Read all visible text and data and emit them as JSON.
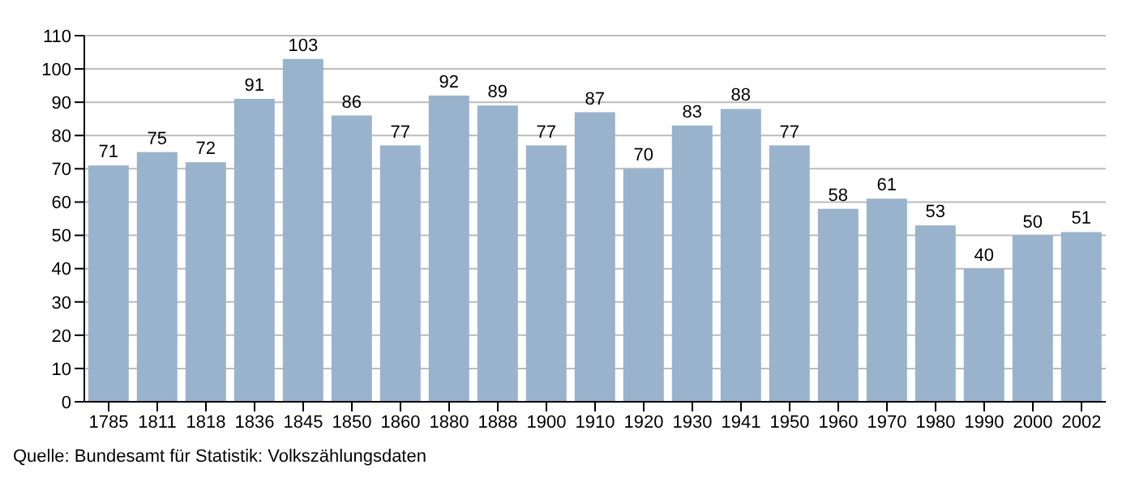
{
  "chart_data": {
    "type": "bar",
    "categories": [
      "1785",
      "1811",
      "1818",
      "1836",
      "1845",
      "1850",
      "1860",
      "1880",
      "1888",
      "1900",
      "1910",
      "1920",
      "1930",
      "1941",
      "1950",
      "1960",
      "1970",
      "1980",
      "1990",
      "2000",
      "2002"
    ],
    "values": [
      71,
      75,
      72,
      91,
      103,
      86,
      77,
      92,
      89,
      77,
      87,
      70,
      83,
      88,
      77,
      58,
      61,
      53,
      40,
      50,
      51
    ],
    "color": "#9ab3cc",
    "ylim": [
      0,
      110
    ],
    "yticks": [
      0,
      10,
      20,
      30,
      40,
      50,
      60,
      70,
      80,
      90,
      100,
      110
    ],
    "grid": "y",
    "data_labels": true,
    "annotations": [
      "Quelle: Bundesamt für Statistik: Volkszählungsdaten"
    ]
  }
}
